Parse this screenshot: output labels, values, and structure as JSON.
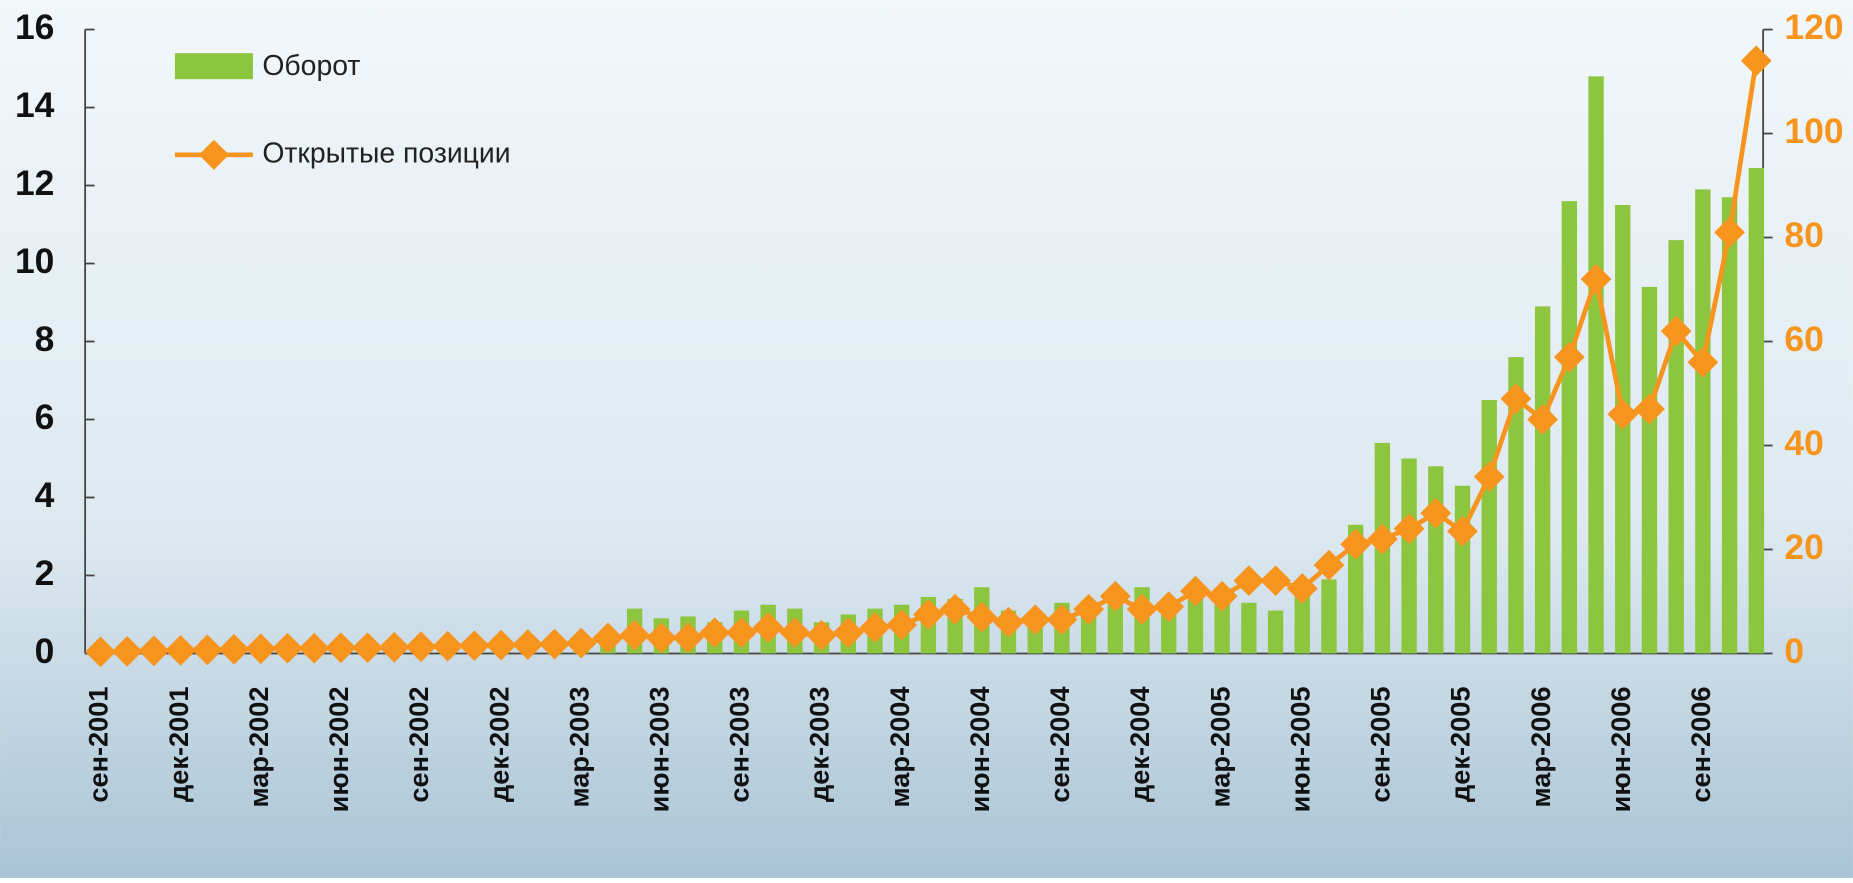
{
  "chart_data": {
    "type": "bar-line",
    "categories": [
      "сен-2001",
      null,
      null,
      "дек-2001",
      null,
      null,
      "мар-2002",
      null,
      null,
      "июн-2002",
      null,
      null,
      "сен-2002",
      null,
      null,
      "дек-2002",
      null,
      null,
      "мар-2003",
      null,
      null,
      "июн-2003",
      null,
      null,
      "сен-2003",
      null,
      null,
      "дек-2003",
      null,
      null,
      "мар-2004",
      null,
      null,
      "июн-2004",
      null,
      null,
      "сен-2004",
      null,
      null,
      "дек-2004",
      null,
      null,
      "мар-2005",
      null,
      null,
      "июн-2005",
      null,
      null,
      "сен-2005",
      null,
      null,
      "дек-2005",
      null,
      null,
      "мар-2006",
      null,
      null,
      "июн-2006",
      null,
      null,
      "сен-2006",
      null,
      null
    ],
    "series": [
      {
        "name": "Оборот",
        "color": "#8cc63f",
        "values": [
          0.05,
          0.05,
          0.05,
          0.05,
          0.05,
          0.05,
          0.05,
          0.05,
          0.05,
          0.05,
          0.05,
          0.05,
          0.05,
          0.1,
          0.1,
          0.1,
          0.1,
          0.1,
          0.15,
          0.3,
          1.15,
          0.9,
          0.95,
          0.8,
          1.1,
          1.25,
          1.15,
          0.8,
          1.0,
          1.15,
          1.25,
          1.45,
          1.4,
          1.7,
          1.1,
          1.0,
          1.3,
          1.35,
          1.4,
          1.7,
          1.3,
          1.5,
          1.6,
          1.3,
          1.1,
          1.7,
          1.9,
          3.3,
          5.4,
          5.0,
          4.8,
          4.3,
          6.5,
          7.6,
          8.9,
          11.6,
          14.8,
          11.5,
          9.4,
          10.6,
          11.9,
          11.7,
          12.45
        ]
      },
      {
        "name": "Открытые позиции",
        "color": "#f7941d",
        "axis": "y2",
        "values": [
          0.3,
          0.4,
          0.5,
          0.6,
          0.7,
          0.8,
          0.9,
          1,
          1,
          1.1,
          1.1,
          1.2,
          1.3,
          1.4,
          1.5,
          1.6,
          1.7,
          1.8,
          2,
          3,
          3.5,
          3,
          3,
          4,
          4,
          5,
          4,
          3.5,
          4,
          5,
          5.5,
          7.5,
          8.5,
          7,
          6,
          6.5,
          6.5,
          8.5,
          11,
          8.5,
          9,
          12,
          11,
          14,
          14,
          12.5,
          17,
          21,
          22,
          24,
          27,
          23.5,
          34,
          49,
          45,
          57,
          72,
          46,
          47,
          62,
          56,
          81,
          114
        ]
      }
    ],
    "ylim": [
      0,
      16
    ],
    "yticks": [
      0,
      2,
      4,
      6,
      8,
      10,
      12,
      14,
      16
    ],
    "y2lim": [
      0,
      120
    ],
    "y2ticks": [
      0,
      20,
      40,
      60,
      80,
      100,
      120
    ]
  }
}
